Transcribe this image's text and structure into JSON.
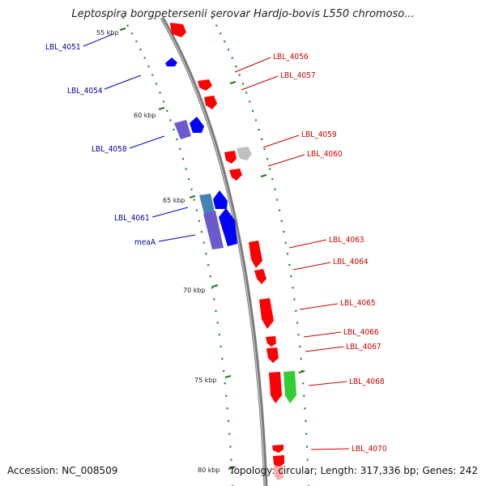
{
  "title": "Leptospira borgpetersenii serovar Hardjo-bovis L550 chromoso...",
  "footer": {
    "accession": "Accession: NC_008509",
    "summary": "Topology: circular; Length: 317,336 bp; Genes: 242"
  },
  "colors": {
    "forward_gene": "#ff0000",
    "reverse_gene": "#0000ff",
    "reverse_gene_alt": "#6a5acd",
    "steelblue_gene": "#4682b4",
    "grey_gene": "#c0c0c0",
    "green_gene": "#33cc33",
    "backbone": "#808080",
    "tick_green": "#228b22",
    "label_forward": "#cc0000",
    "label_reverse": "#0000aa"
  },
  "ticks": [
    {
      "label": "55 kbp"
    },
    {
      "label": "60 kbp"
    },
    {
      "label": "65 kbp"
    },
    {
      "label": "70 kbp"
    },
    {
      "label": "75 kbp"
    },
    {
      "label": "80 kbp"
    }
  ],
  "labels_left": [
    "LBL_4051",
    "LBL_4054",
    "LBL_4058",
    "LBL_4061",
    "meaA"
  ],
  "labels_right": [
    "LBL_4056",
    "LBL_4057",
    "LBL_4059",
    "LBL_4060",
    "LBL_4063",
    "LBL_4064",
    "LBL_4065",
    "LBL_4066",
    "LBL_4067",
    "LBL_4068",
    "LBL_4070"
  ]
}
